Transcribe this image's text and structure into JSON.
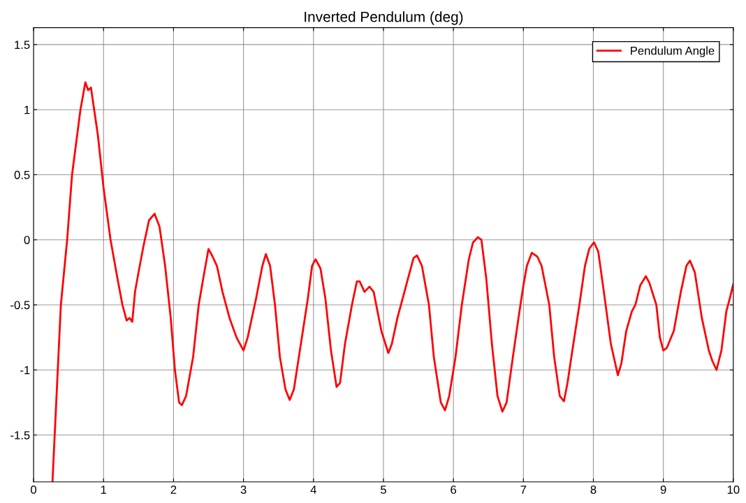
{
  "chart_data": {
    "type": "line",
    "title": "Inverted Pendulum (deg)",
    "xlim": [
      0,
      10
    ],
    "xticks": [
      0,
      1,
      2,
      3,
      4,
      5,
      6,
      7,
      8,
      9,
      10
    ],
    "ylim": [
      -1.86,
      1.63
    ],
    "yticks": [
      -1.5,
      -1,
      -0.5,
      0,
      0.5,
      1,
      1.5
    ],
    "grid": true,
    "legend": "top right",
    "series": [
      {
        "name": "Pendulum Angle",
        "color": "#ff0000",
        "x": [
          0.27,
          0.39,
          0.48,
          0.55,
          0.67,
          0.74,
          0.78,
          0.82,
          0.92,
          1.0,
          1.1,
          1.2,
          1.27,
          1.33,
          1.37,
          1.41,
          1.45,
          1.5,
          1.57,
          1.65,
          1.73,
          1.8,
          1.88,
          1.96,
          2.02,
          2.08,
          2.12,
          2.18,
          2.28,
          2.36,
          2.44,
          2.5,
          2.55,
          2.62,
          2.7,
          2.8,
          2.9,
          3.0,
          3.06,
          3.18,
          3.27,
          3.32,
          3.38,
          3.45,
          3.52,
          3.6,
          3.66,
          3.72,
          3.82,
          3.92,
          3.98,
          4.03,
          4.1,
          4.17,
          4.25,
          4.33,
          4.38,
          4.45,
          4.55,
          4.62,
          4.66,
          4.73,
          4.8,
          4.86,
          4.97,
          5.07,
          5.12,
          5.2,
          5.35,
          5.43,
          5.48,
          5.55,
          5.65,
          5.72,
          5.82,
          5.88,
          5.94,
          6.03,
          6.12,
          6.22,
          6.28,
          6.35,
          6.4,
          6.47,
          6.55,
          6.63,
          6.7,
          6.76,
          6.85,
          6.93,
          7.0,
          7.05,
          7.12,
          7.2,
          7.26,
          7.37,
          7.44,
          7.52,
          7.58,
          7.63,
          7.7,
          7.8,
          7.88,
          7.94,
          7.98,
          8.01,
          8.07,
          8.15,
          8.25,
          8.35,
          8.4,
          8.47,
          8.55,
          8.6,
          8.67,
          8.75,
          8.8,
          8.9,
          8.95,
          9.0,
          9.05,
          9.15,
          9.25,
          9.33,
          9.38,
          9.45,
          9.55,
          9.65,
          9.7,
          9.76,
          9.83,
          9.9,
          9.95,
          10.0
        ],
        "values": [
          -1.86,
          -0.5,
          0,
          0.5,
          1.0,
          1.21,
          1.15,
          1.17,
          0.8,
          0.4,
          0,
          -0.3,
          -0.5,
          -0.62,
          -0.6,
          -0.63,
          -0.4,
          -0.25,
          -0.05,
          0.15,
          0.2,
          0.1,
          -0.2,
          -0.6,
          -1.0,
          -1.25,
          -1.27,
          -1.2,
          -0.9,
          -0.5,
          -0.25,
          -0.07,
          -0.12,
          -0.2,
          -0.4,
          -0.6,
          -0.75,
          -0.85,
          -0.75,
          -0.45,
          -0.2,
          -0.11,
          -0.2,
          -0.5,
          -0.9,
          -1.15,
          -1.23,
          -1.15,
          -0.8,
          -0.45,
          -0.2,
          -0.15,
          -0.22,
          -0.45,
          -0.85,
          -1.13,
          -1.1,
          -0.8,
          -0.5,
          -0.32,
          -0.32,
          -0.4,
          -0.36,
          -0.4,
          -0.7,
          -0.87,
          -0.8,
          -0.6,
          -0.3,
          -0.14,
          -0.12,
          -0.2,
          -0.5,
          -0.9,
          -1.25,
          -1.31,
          -1.2,
          -0.9,
          -0.5,
          -0.15,
          -0.02,
          0.02,
          0,
          -0.3,
          -0.8,
          -1.2,
          -1.32,
          -1.25,
          -0.9,
          -0.6,
          -0.35,
          -0.2,
          -0.1,
          -0.13,
          -0.2,
          -0.5,
          -0.9,
          -1.2,
          -1.24,
          -1.1,
          -0.85,
          -0.5,
          -0.2,
          -0.07,
          -0.04,
          -0.02,
          -0.09,
          -0.4,
          -0.8,
          -1.04,
          -0.95,
          -0.7,
          -0.55,
          -0.5,
          -0.35,
          -0.28,
          -0.33,
          -0.5,
          -0.75,
          -0.85,
          -0.83,
          -0.7,
          -0.4,
          -0.2,
          -0.16,
          -0.25,
          -0.6,
          -0.85,
          -0.93,
          -1.0,
          -0.85,
          -0.55,
          -0.45,
          -0.34
        ]
      }
    ]
  }
}
